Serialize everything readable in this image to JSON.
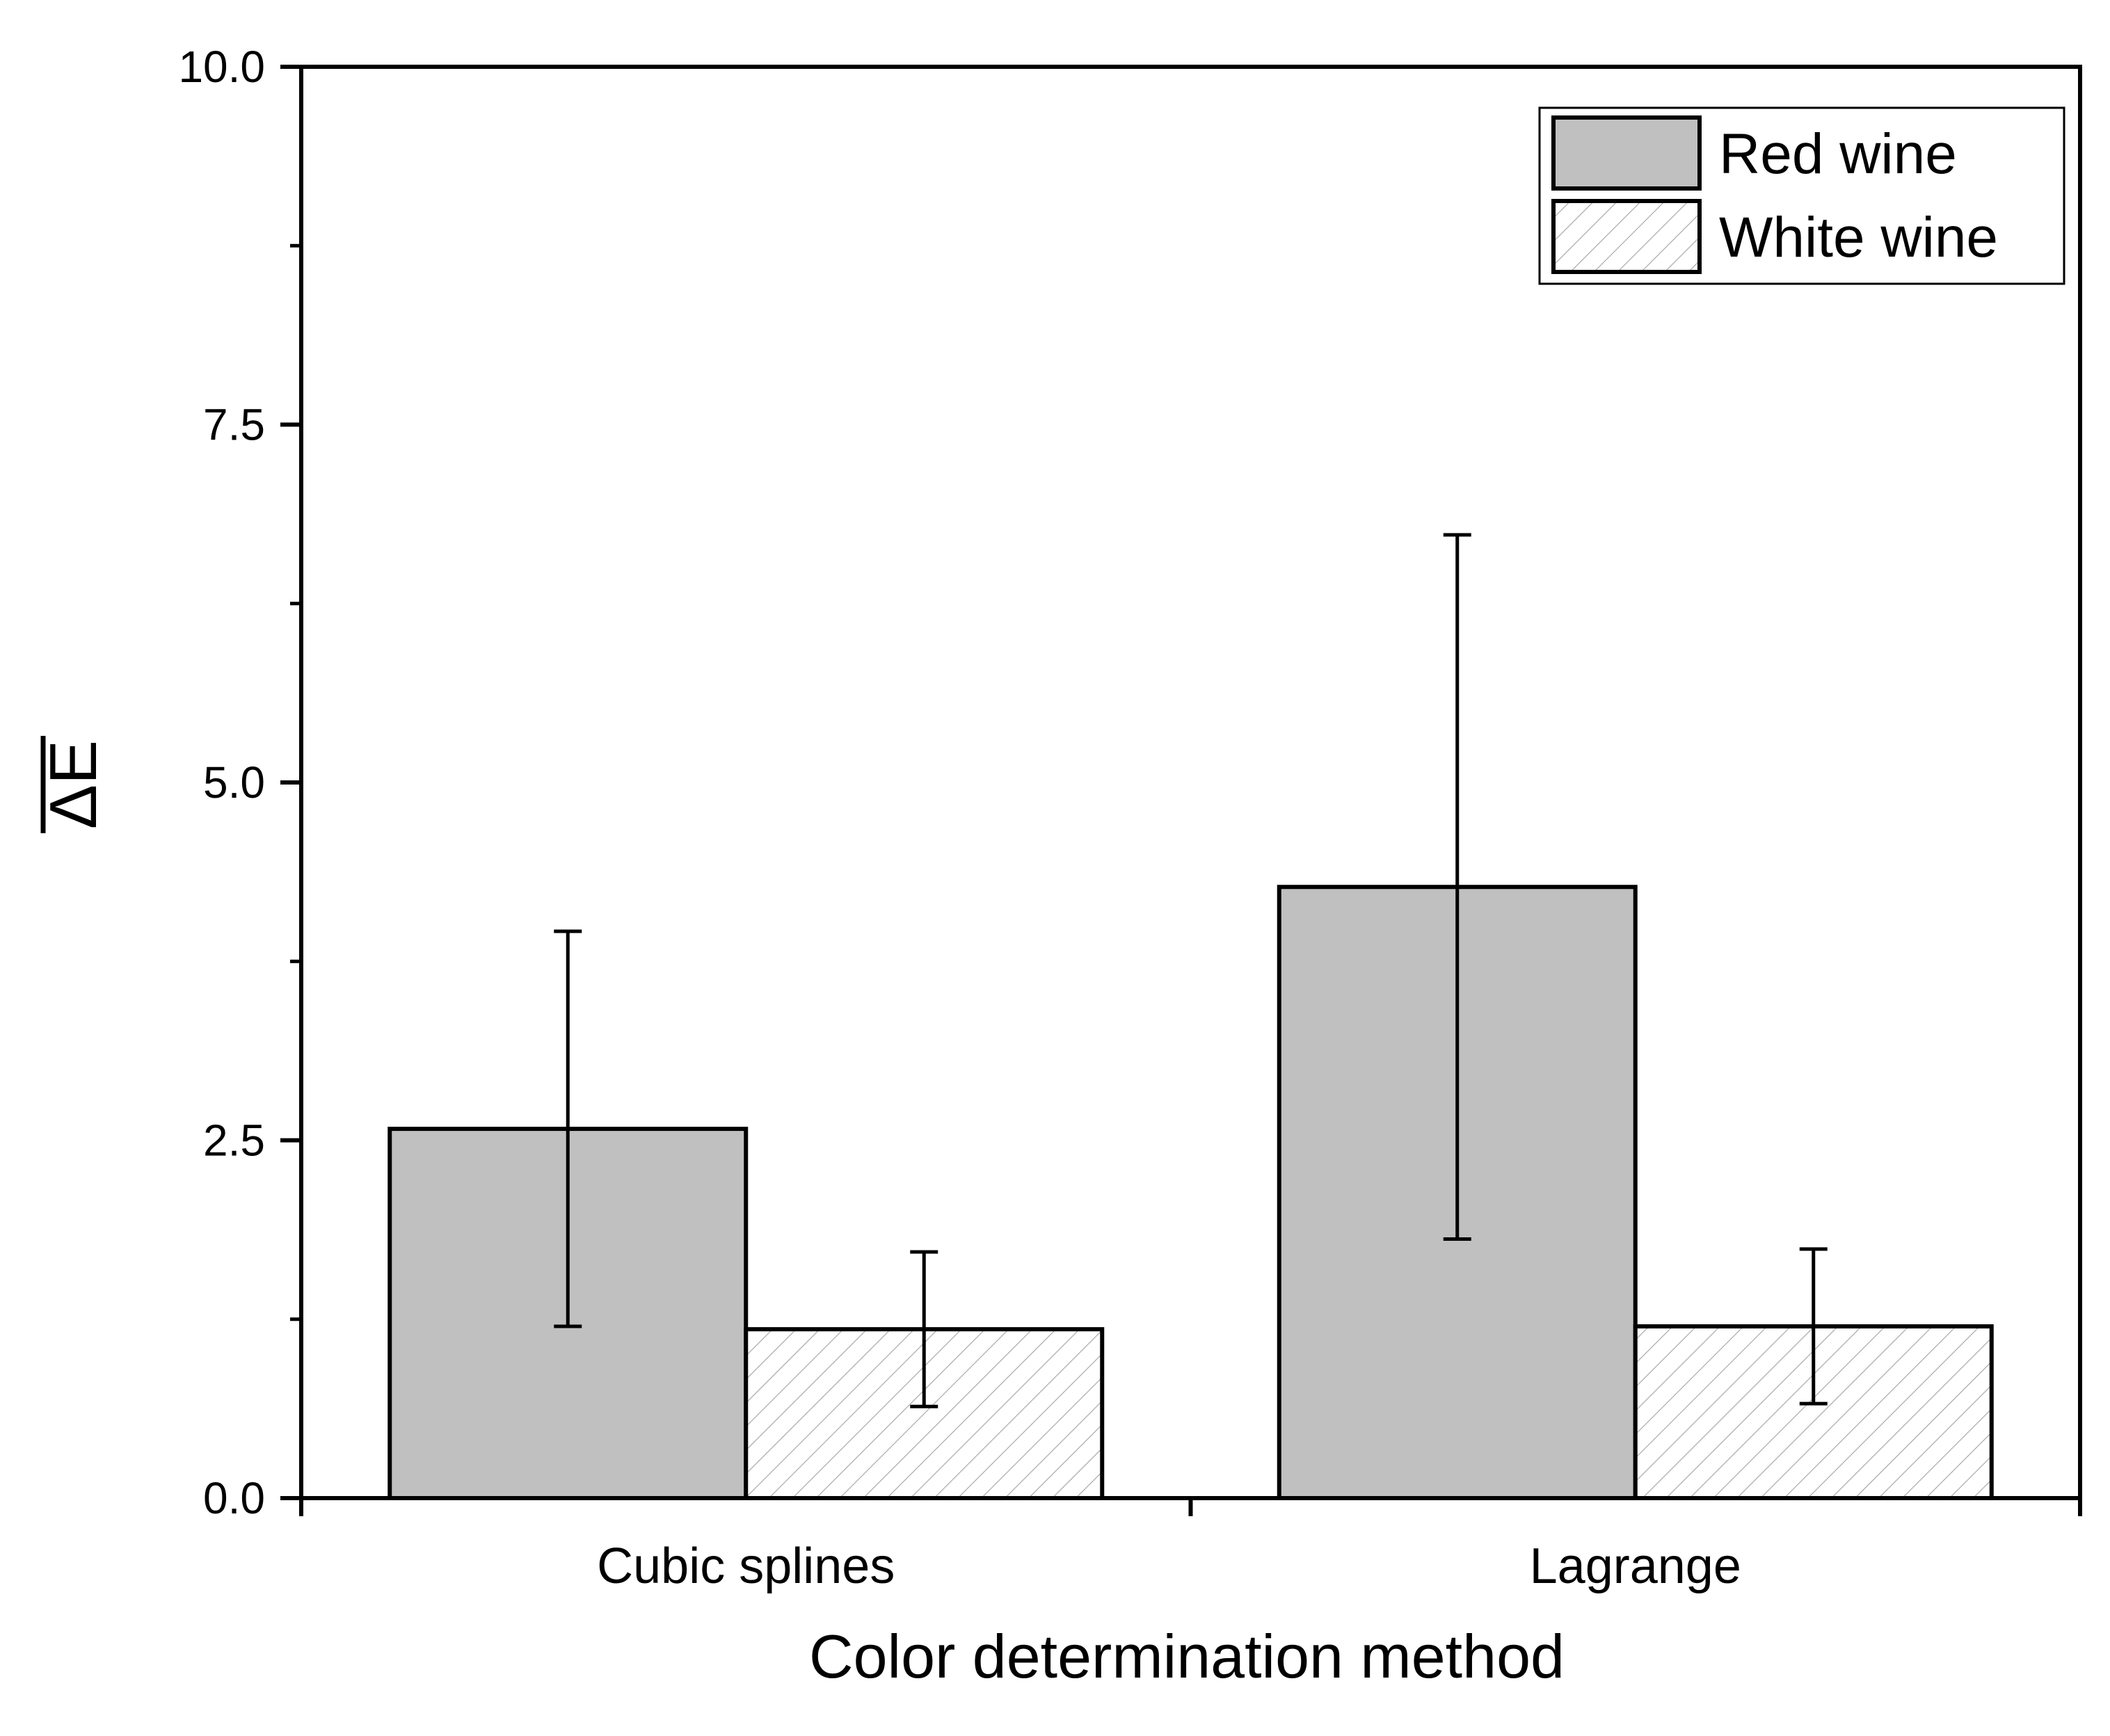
{
  "chart_data": {
    "type": "bar",
    "title": "",
    "xlabel": "Color determination method",
    "ylabel": "ΔE",
    "ylim": [
      0,
      10
    ],
    "yticks": [
      0.0,
      2.5,
      5.0,
      7.5,
      10.0
    ],
    "ytick_labels": [
      "0.0",
      "2.5",
      "5.0",
      "7.5",
      "10.0"
    ],
    "y_minor_ticks": [
      1.25,
      3.75,
      6.25,
      8.75
    ],
    "grid": false,
    "legend_position": "top-right",
    "categories": [
      "Cubic splines",
      "Lagrange"
    ],
    "series": [
      {
        "name": "Red wine",
        "values": [
          2.58,
          4.27
        ],
        "error": [
          1.38,
          2.46
        ],
        "fill": "#c0c0c0",
        "pattern": "solid"
      },
      {
        "name": "White wine",
        "values": [
          1.18,
          1.2
        ],
        "error": [
          0.54,
          0.54
        ],
        "fill": "#ffffff",
        "pattern": "diagonal-hatch",
        "hatch_color": "#a8a8a8"
      }
    ],
    "colors": {
      "axis": "#000000",
      "bar_edge": "#000000"
    }
  }
}
